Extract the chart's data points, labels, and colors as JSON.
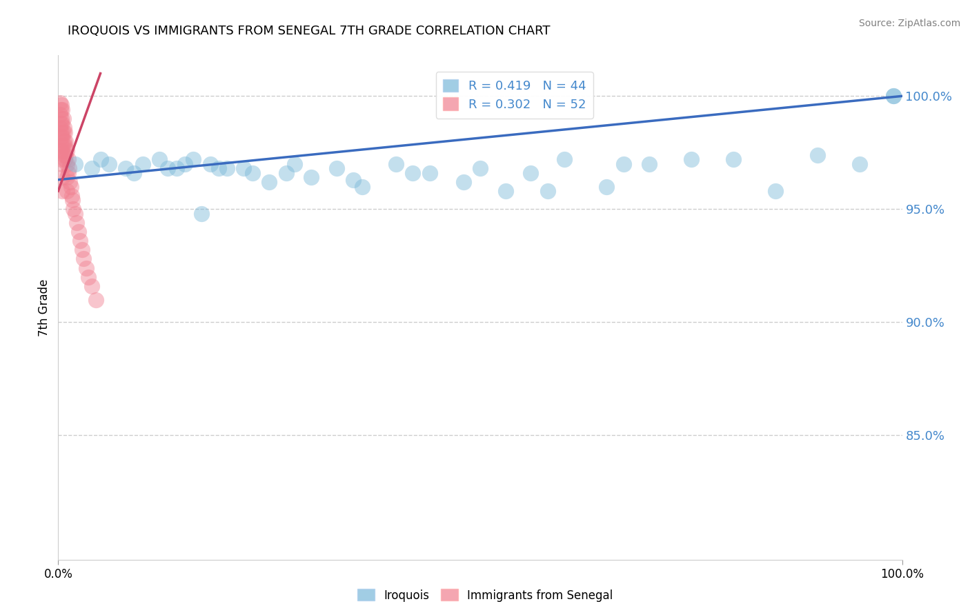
{
  "title": "IROQUOIS VS IMMIGRANTS FROM SENEGAL 7TH GRADE CORRELATION CHART",
  "source": "Source: ZipAtlas.com",
  "ylabel": "7th Grade",
  "xlabel": "",
  "iroquois_color": "#7ab8d9",
  "senegal_color": "#f08090",
  "iroquois_R": 0.419,
  "iroquois_N": 44,
  "senegal_R": 0.302,
  "senegal_N": 52,
  "iroquois_line_color": "#3a6bbf",
  "senegal_line_color": "#cc4466",
  "legend_R_color": "#4488cc",
  "background_color": "#ffffff",
  "grid_color": "#cccccc",
  "xmin": 0.0,
  "xmax": 1.0,
  "ymin": 0.795,
  "ymax": 1.018,
  "ytick_labels": [
    "85.0%",
    "90.0%",
    "95.0%",
    "100.0%"
  ],
  "ytick_values": [
    0.85,
    0.9,
    0.95,
    1.0
  ],
  "xtick_labels": [
    "0.0%",
    "100.0%"
  ],
  "xtick_values": [
    0.0,
    1.0
  ],
  "iroquois_x": [
    0.02,
    0.04,
    0.05,
    0.06,
    0.08,
    0.09,
    0.1,
    0.12,
    0.13,
    0.14,
    0.15,
    0.16,
    0.18,
    0.19,
    0.2,
    0.22,
    0.23,
    0.25,
    0.27,
    0.28,
    0.3,
    0.33,
    0.36,
    0.4,
    0.44,
    0.48,
    0.5,
    0.53,
    0.56,
    0.6,
    0.65,
    0.67,
    0.7,
    0.75,
    0.8,
    0.85,
    0.9,
    0.95,
    0.99,
    0.99,
    0.35,
    0.42,
    0.58,
    0.17
  ],
  "iroquois_y": [
    0.97,
    0.968,
    0.972,
    0.97,
    0.968,
    0.966,
    0.97,
    0.972,
    0.968,
    0.968,
    0.97,
    0.972,
    0.97,
    0.968,
    0.968,
    0.968,
    0.966,
    0.962,
    0.966,
    0.97,
    0.964,
    0.968,
    0.96,
    0.97,
    0.966,
    0.962,
    0.968,
    0.958,
    0.966,
    0.972,
    0.96,
    0.97,
    0.97,
    0.972,
    0.972,
    0.958,
    0.974,
    0.97,
    1.0,
    1.0,
    0.963,
    0.966,
    0.958,
    0.948
  ],
  "senegal_x": [
    0.002,
    0.002,
    0.002,
    0.003,
    0.003,
    0.003,
    0.003,
    0.004,
    0.004,
    0.004,
    0.004,
    0.004,
    0.005,
    0.005,
    0.005,
    0.005,
    0.005,
    0.005,
    0.005,
    0.006,
    0.006,
    0.006,
    0.007,
    0.007,
    0.007,
    0.008,
    0.008,
    0.008,
    0.009,
    0.009,
    0.01,
    0.01,
    0.01,
    0.01,
    0.012,
    0.012,
    0.013,
    0.014,
    0.015,
    0.016,
    0.017,
    0.018,
    0.02,
    0.022,
    0.024,
    0.026,
    0.028,
    0.03,
    0.033,
    0.036,
    0.04,
    0.045
  ],
  "senegal_y": [
    0.997,
    0.992,
    0.986,
    0.994,
    0.988,
    0.982,
    0.976,
    0.996,
    0.99,
    0.984,
    0.978,
    0.972,
    0.994,
    0.988,
    0.982,
    0.976,
    0.97,
    0.964,
    0.958,
    0.99,
    0.984,
    0.978,
    0.986,
    0.98,
    0.974,
    0.984,
    0.978,
    0.972,
    0.98,
    0.974,
    0.976,
    0.97,
    0.964,
    0.958,
    0.972,
    0.966,
    0.968,
    0.962,
    0.96,
    0.956,
    0.954,
    0.95,
    0.948,
    0.944,
    0.94,
    0.936,
    0.932,
    0.928,
    0.924,
    0.92,
    0.916,
    0.91
  ],
  "senegal_line_start_x": 0.0,
  "senegal_line_start_y": 0.958,
  "senegal_line_end_x": 0.05,
  "senegal_line_end_y": 1.01,
  "iroquois_line_start_x": 0.0,
  "iroquois_line_start_y": 0.963,
  "iroquois_line_end_x": 1.0,
  "iroquois_line_end_y": 1.0
}
